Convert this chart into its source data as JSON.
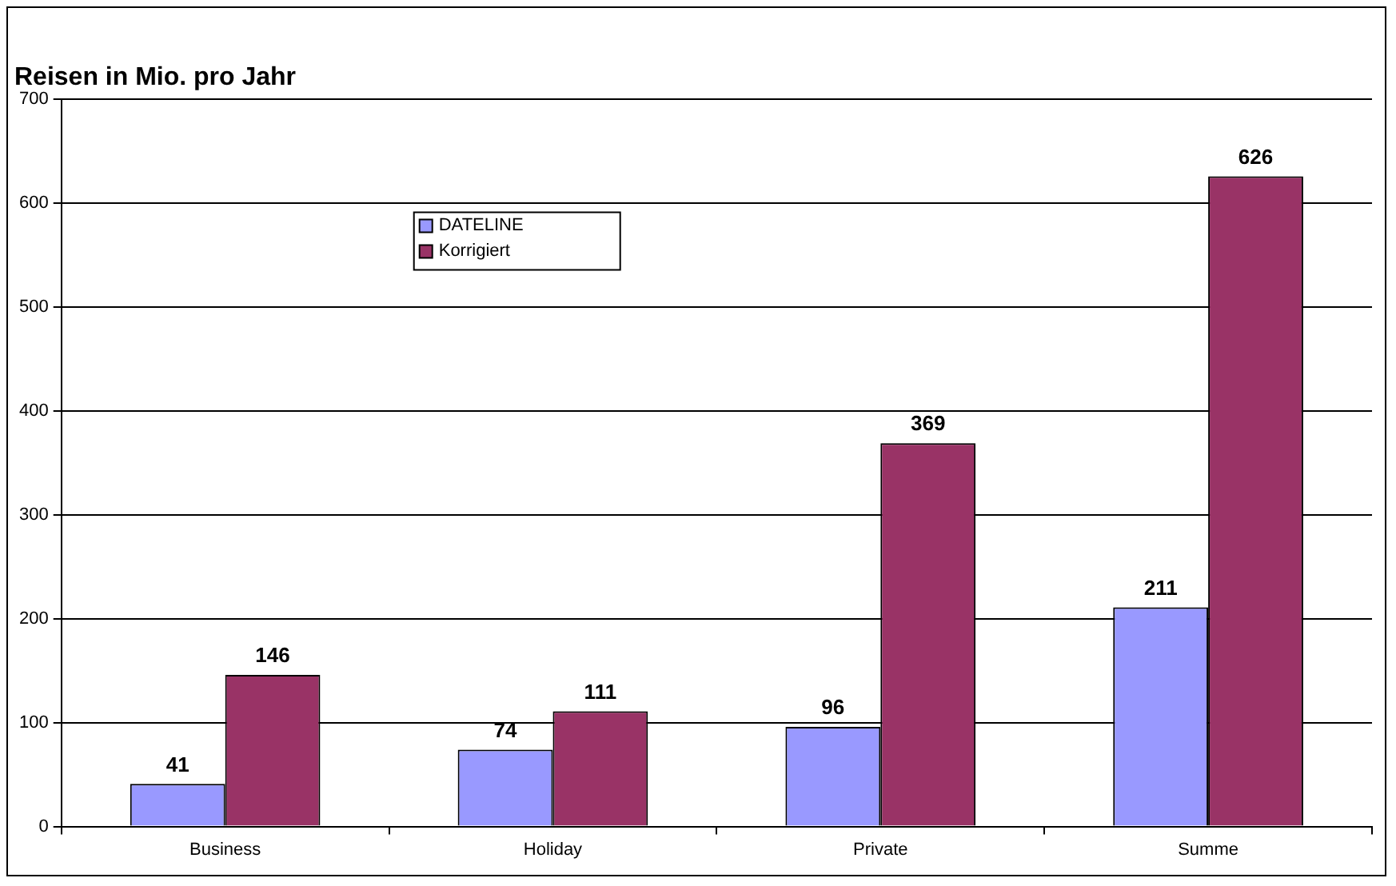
{
  "chart_data": {
    "type": "bar",
    "title": "Reisen in Mio. pro Jahr",
    "categories": [
      "Business",
      "Holiday",
      "Private",
      "Summe"
    ],
    "series": [
      {
        "name": "DATELINE",
        "color": "#9999ff",
        "values": [
          41,
          74,
          96,
          211
        ]
      },
      {
        "name": "Korrigiert",
        "color": "#993366",
        "values": [
          146,
          111,
          369,
          626
        ]
      }
    ],
    "ylim": [
      0,
      700
    ],
    "yticks": [
      0,
      100,
      200,
      300,
      400,
      500,
      600,
      700
    ],
    "grid": "y",
    "legend": "top left",
    "data_labels": true
  }
}
